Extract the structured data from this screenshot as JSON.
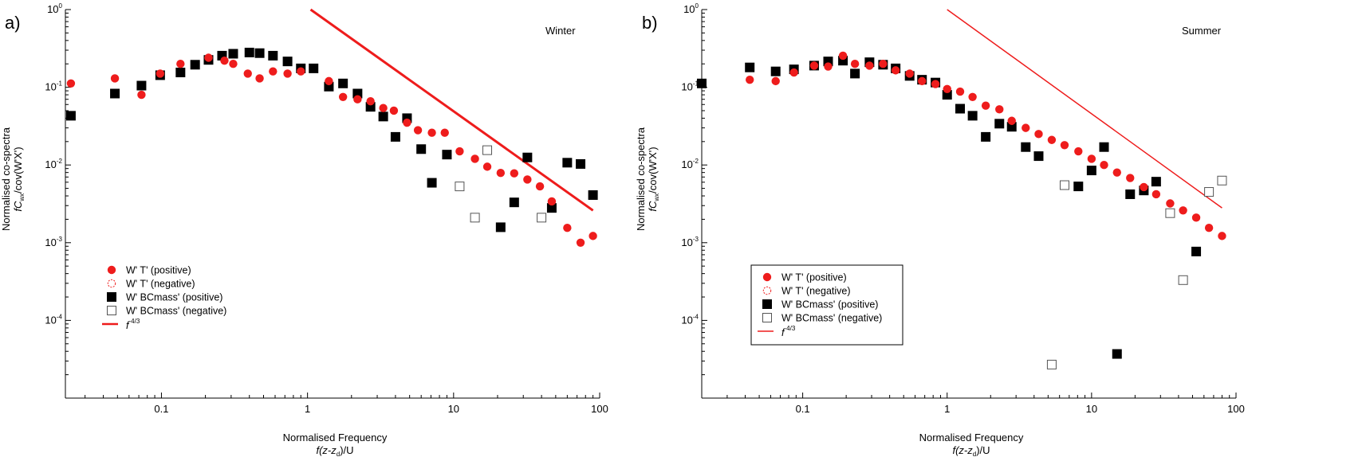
{
  "colors": {
    "red": "#ee1c1c",
    "black": "#000000",
    "neg_square_stroke": "#555555"
  },
  "chart_data": [
    {
      "type": "scatter",
      "panel_label": "a)",
      "season": "Winter",
      "xscale": "log",
      "yscale": "log",
      "xlim": [
        0.022,
        100
      ],
      "ylim": [
        1e-05,
        1
      ],
      "xticks": [
        "0.1",
        "1",
        "10",
        "100"
      ],
      "xlabel": "Normalised Frequency",
      "xlabel2": {
        "pre": "f(z-z",
        "sub": "d",
        "post": ")/U"
      },
      "ylabel": "Normalised co-spectra",
      "ylabel2": {
        "pre": "fC",
        "sub": "wx",
        "post": "/cov(W'X')"
      },
      "legend_box": false,
      "legend": {
        "entries": [
          {
            "key": "t_pos",
            "label": "W' T' (positive)"
          },
          {
            "key": "t_neg",
            "label": "W' T' (negative)"
          },
          {
            "key": "bc_pos",
            "label": "W' BCmass' (positive)"
          },
          {
            "key": "bc_neg",
            "label": "W' BCmass' (negative)"
          }
        ],
        "line_label": "f"
      },
      "series": [
        {
          "key": "t_pos",
          "name": "W' T' (positive)",
          "marker": "filled-circle",
          "color": "#ee1c1c",
          "x": [
            0.024,
            0.048,
            0.073,
            0.098,
            0.135,
            0.21,
            0.27,
            0.31,
            0.39,
            0.47,
            0.58,
            0.73,
            0.9,
            1.4,
            1.75,
            2.2,
            2.7,
            3.3,
            3.9,
            4.8,
            5.7,
            7.1,
            8.7,
            11,
            14,
            17,
            21,
            26,
            32,
            39,
            47,
            60,
            74,
            90
          ],
          "y": [
            0.112,
            0.13,
            0.08,
            0.15,
            0.2,
            0.24,
            0.22,
            0.2,
            0.15,
            0.13,
            0.16,
            0.15,
            0.16,
            0.12,
            0.075,
            0.07,
            0.066,
            0.054,
            0.05,
            0.035,
            0.028,
            0.026,
            0.026,
            0.015,
            0.012,
            0.0095,
            0.0079,
            0.0078,
            0.0065,
            0.0053,
            0.0034,
            0.00155,
            0.001,
            0.00122
          ]
        },
        {
          "key": "t_neg",
          "name": "W' T' (negative)",
          "marker": "open-circle",
          "color": "#ee1c1c",
          "x": [],
          "y": []
        },
        {
          "key": "bc_pos",
          "name": "W' BCmass' (positive)",
          "marker": "filled-square",
          "color": "#000000",
          "x": [
            0.024,
            0.048,
            0.073,
            0.098,
            0.135,
            0.17,
            0.21,
            0.26,
            0.31,
            0.4,
            0.47,
            0.58,
            0.73,
            0.9,
            1.1,
            1.4,
            1.75,
            2.2,
            2.7,
            3.3,
            4.0,
            4.8,
            6.0,
            7.1,
            9,
            21,
            26,
            32,
            47,
            60,
            74,
            90
          ],
          "y": [
            0.043,
            0.083,
            0.105,
            0.143,
            0.155,
            0.195,
            0.225,
            0.255,
            0.27,
            0.28,
            0.275,
            0.255,
            0.215,
            0.175,
            0.175,
            0.102,
            0.112,
            0.083,
            0.056,
            0.042,
            0.023,
            0.04,
            0.016,
            0.0059,
            0.0136,
            0.00158,
            0.0033,
            0.0125,
            0.0028,
            0.0107,
            0.0103,
            0.0041
          ]
        },
        {
          "key": "bc_neg",
          "name": "W' BCmass' (negative)",
          "marker": "open-square",
          "color": "#000000",
          "x": [
            11,
            14,
            17,
            40
          ],
          "y": [
            0.0053,
            0.0021,
            0.0155,
            0.0021
          ]
        }
      ],
      "ref_line": {
        "label": "f",
        "exponent": "-4/3",
        "x": [
          1.05,
          90
        ],
        "y": [
          1,
          0.0026
        ],
        "width": 3
      }
    },
    {
      "type": "scatter",
      "panel_label": "b)",
      "season": "Summer",
      "xscale": "log",
      "yscale": "log",
      "xlim": [
        0.02,
        100
      ],
      "ylim": [
        1e-05,
        1
      ],
      "xticks": [
        "0.1",
        "1",
        "10",
        "100"
      ],
      "xlabel": "Normalised Frequency",
      "xlabel2": {
        "pre": "f(z-z",
        "sub": "d",
        "post": ")/U"
      },
      "ylabel": "Normalised co-spectra",
      "ylabel2": {
        "pre": "fC",
        "sub": "wx",
        "post": "/cov(W'X')"
      },
      "legend_box": true,
      "legend": {
        "entries": [
          {
            "key": "t_pos",
            "label": "W' T' (positive)"
          },
          {
            "key": "t_neg",
            "label": "W' T' (negative)"
          },
          {
            "key": "bc_pos",
            "label": "W' BCmass' (positive)"
          },
          {
            "key": "bc_neg",
            "label": "W' BCmass' (negative)"
          }
        ],
        "line_label": "f"
      },
      "series": [
        {
          "key": "t_pos",
          "name": "W' T' (positive)",
          "marker": "filled-circle",
          "color": "#ee1c1c",
          "x": [
            0.043,
            0.065,
            0.087,
            0.12,
            0.15,
            0.19,
            0.23,
            0.29,
            0.36,
            0.44,
            0.55,
            0.67,
            0.83,
            1.0,
            1.23,
            1.5,
            1.85,
            2.3,
            2.8,
            3.5,
            4.3,
            5.3,
            6.5,
            8.1,
            10,
            12.2,
            15,
            18.5,
            23,
            28,
            35,
            43,
            53,
            65,
            80
          ],
          "y": [
            0.125,
            0.12,
            0.155,
            0.19,
            0.185,
            0.255,
            0.2,
            0.19,
            0.2,
            0.165,
            0.15,
            0.12,
            0.11,
            0.095,
            0.088,
            0.075,
            0.058,
            0.052,
            0.037,
            0.03,
            0.025,
            0.021,
            0.018,
            0.015,
            0.012,
            0.01,
            0.008,
            0.0068,
            0.0052,
            0.0042,
            0.0032,
            0.0026,
            0.0021,
            0.00155,
            0.00122
          ]
        },
        {
          "key": "t_neg",
          "name": "W' T' (negative)",
          "marker": "open-circle",
          "color": "#ee1c1c",
          "x": [],
          "y": []
        },
        {
          "key": "bc_pos",
          "name": "W' BCmass' (positive)",
          "marker": "filled-square",
          "color": "#000000",
          "x": [
            0.02,
            0.043,
            0.065,
            0.087,
            0.12,
            0.15,
            0.19,
            0.23,
            0.29,
            0.36,
            0.44,
            0.55,
            0.67,
            0.83,
            1.0,
            1.23,
            1.5,
            1.85,
            2.3,
            2.8,
            3.5,
            4.3,
            8.1,
            10,
            12.2,
            15,
            18.5,
            23,
            28,
            53
          ],
          "y": [
            0.112,
            0.18,
            0.16,
            0.17,
            0.19,
            0.215,
            0.22,
            0.15,
            0.21,
            0.195,
            0.175,
            0.14,
            0.125,
            0.115,
            0.08,
            0.053,
            0.043,
            0.023,
            0.034,
            0.031,
            0.017,
            0.013,
            0.0053,
            0.0085,
            0.017,
            3.7e-05,
            0.0042,
            0.0047,
            0.0061,
            0.00077
          ]
        },
        {
          "key": "bc_neg",
          "name": "W' BCmass' (negative)",
          "marker": "open-square",
          "color": "#000000",
          "x": [
            5.3,
            6.5,
            35,
            43,
            65,
            80
          ],
          "y": [
            2.7e-05,
            0.0055,
            0.0024,
            0.00033,
            0.0045,
            0.0063
          ]
        }
      ],
      "ref_line": {
        "label": "f",
        "exponent": "-4/3",
        "x": [
          1.0,
          80
        ],
        "y": [
          1,
          0.0028
        ],
        "width": 1.5
      }
    }
  ]
}
